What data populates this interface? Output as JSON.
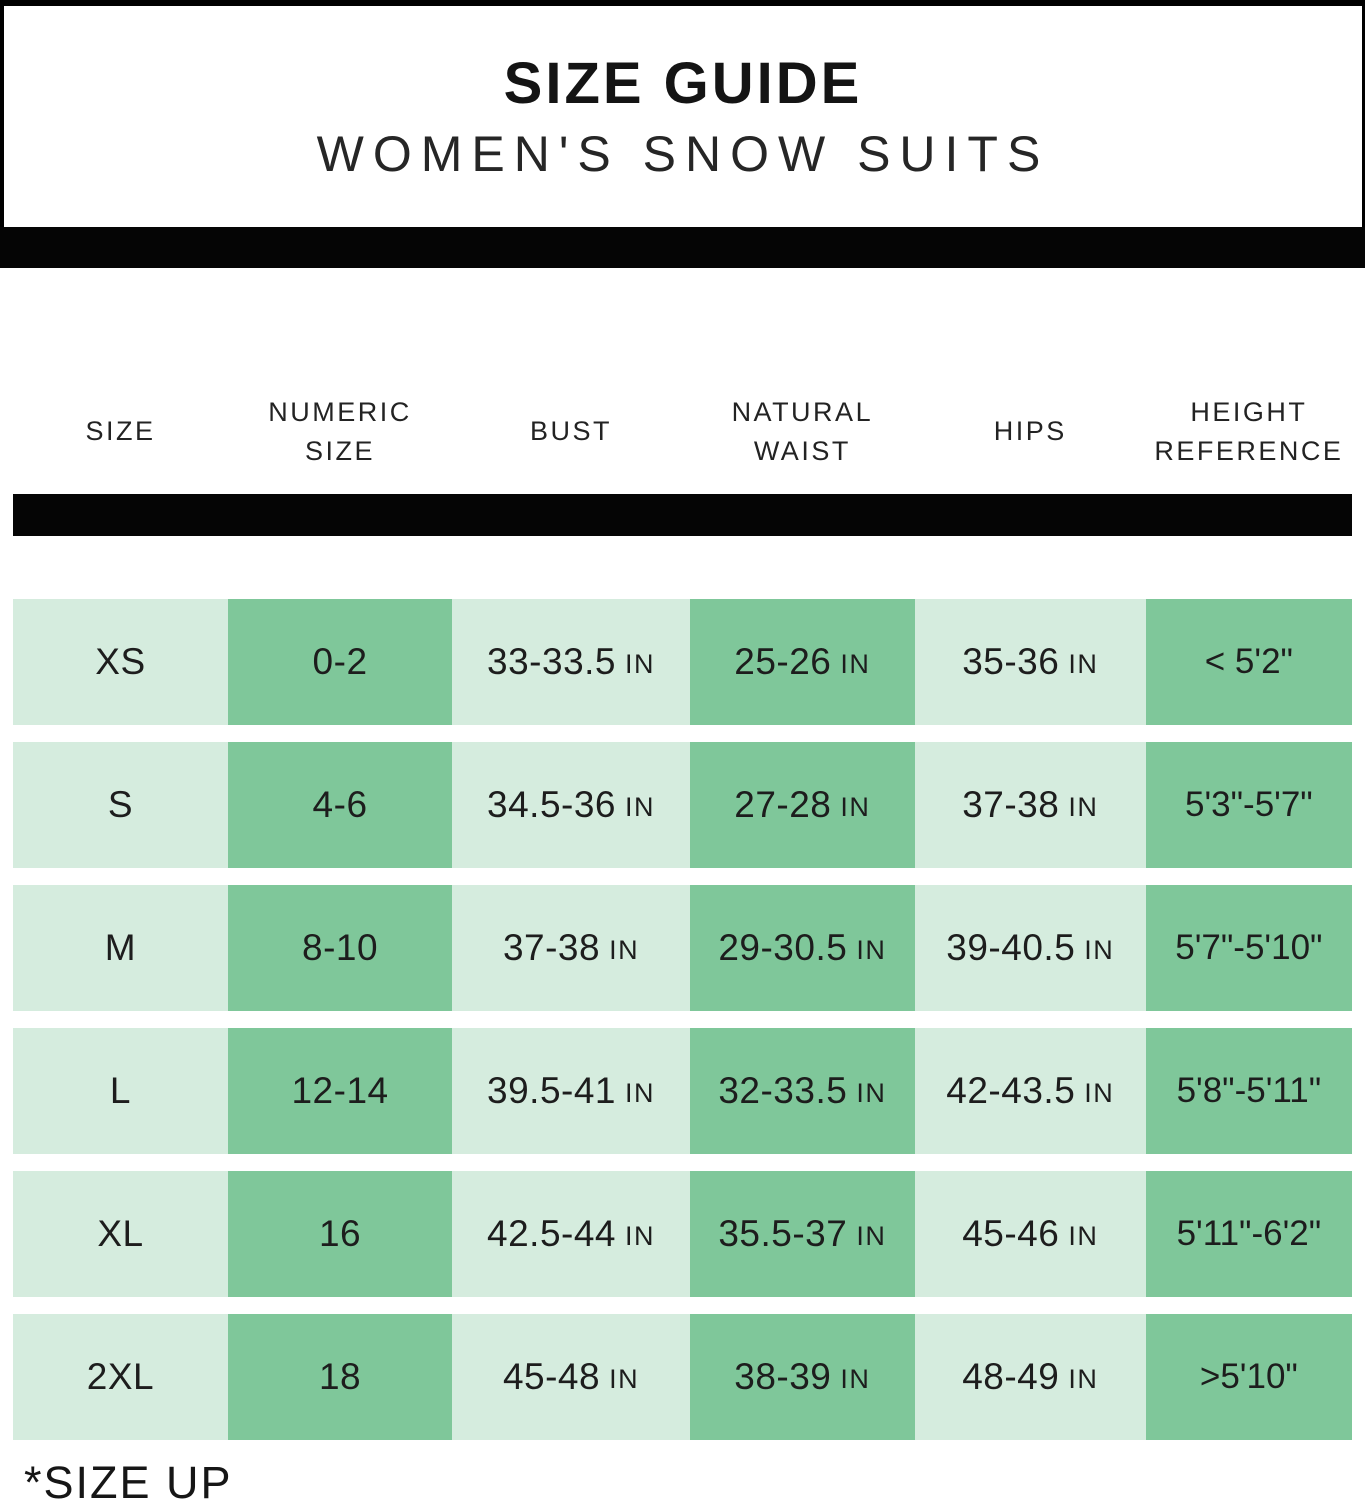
{
  "header": {
    "title": "SIZE GUIDE",
    "subtitle": "WOMEN'S SNOW SUITS"
  },
  "table": {
    "columns": [
      {
        "label": "SIZE"
      },
      {
        "label": "NUMERIC SIZE"
      },
      {
        "label": "BUST"
      },
      {
        "label": "NATURAL WAIST"
      },
      {
        "label": "HIPS"
      },
      {
        "label": "HEIGHT REFERENCE"
      }
    ],
    "rows": [
      {
        "cells": [
          {
            "main": "XS",
            "unit": ""
          },
          {
            "main": "0-2",
            "unit": ""
          },
          {
            "main": "33-33.5",
            "unit": "IN"
          },
          {
            "main": "25-26",
            "unit": "IN"
          },
          {
            "main": "35-36",
            "unit": "IN"
          },
          {
            "main": "< 5'2\"",
            "unit": ""
          }
        ]
      },
      {
        "cells": [
          {
            "main": "S",
            "unit": ""
          },
          {
            "main": "4-6",
            "unit": ""
          },
          {
            "main": "34.5-36",
            "unit": "IN"
          },
          {
            "main": "27-28",
            "unit": "IN"
          },
          {
            "main": "37-38",
            "unit": "IN"
          },
          {
            "main": "5'3\"-5'7\"",
            "unit": ""
          }
        ]
      },
      {
        "cells": [
          {
            "main": "M",
            "unit": ""
          },
          {
            "main": "8-10",
            "unit": ""
          },
          {
            "main": "37-38",
            "unit": "IN"
          },
          {
            "main": "29-30.5",
            "unit": "IN"
          },
          {
            "main": "39-40.5",
            "unit": "IN"
          },
          {
            "main": "5'7\"-5'10\"",
            "unit": ""
          }
        ]
      },
      {
        "cells": [
          {
            "main": "L",
            "unit": ""
          },
          {
            "main": "12-14",
            "unit": ""
          },
          {
            "main": "39.5-41",
            "unit": "IN"
          },
          {
            "main": "32-33.5",
            "unit": "IN"
          },
          {
            "main": "42-43.5",
            "unit": "IN"
          },
          {
            "main": "5'8\"-5'11\"",
            "unit": ""
          }
        ]
      },
      {
        "cells": [
          {
            "main": "XL",
            "unit": ""
          },
          {
            "main": "16",
            "unit": ""
          },
          {
            "main": "42.5-44",
            "unit": "IN"
          },
          {
            "main": "35.5-37",
            "unit": "IN"
          },
          {
            "main": "45-46",
            "unit": "IN"
          },
          {
            "main": "5'11\"-6'2\"",
            "unit": ""
          }
        ]
      },
      {
        "cells": [
          {
            "main": "2XL",
            "unit": ""
          },
          {
            "main": "18",
            "unit": ""
          },
          {
            "main": "45-48",
            "unit": "IN"
          },
          {
            "main": "38-39",
            "unit": "IN"
          },
          {
            "main": "48-49",
            "unit": "IN"
          },
          {
            "main": ">5'10\"",
            "unit": ""
          }
        ]
      }
    ]
  },
  "footnote": "*SIZE UP",
  "colors": {
    "light_green": "#d5ecde",
    "dark_green": "#7fc79a",
    "bar_black": "#050505"
  },
  "chart_data": {
    "type": "table",
    "title": "SIZE GUIDE",
    "subtitle": "WOMEN'S SNOW SUITS",
    "columns": [
      "SIZE",
      "NUMERIC SIZE",
      "BUST",
      "NATURAL WAIST",
      "HIPS",
      "HEIGHT REFERENCE"
    ],
    "rows": [
      [
        "XS",
        "0-2",
        "33-33.5 IN",
        "25-26 IN",
        "35-36 IN",
        "< 5'2\""
      ],
      [
        "S",
        "4-6",
        "34.5-36 IN",
        "27-28 IN",
        "37-38 IN",
        "5'3\"-5'7\""
      ],
      [
        "M",
        "8-10",
        "37-38 IN",
        "29-30.5 IN",
        "39-40.5 IN",
        "5'7\"-5'10\""
      ],
      [
        "L",
        "12-14",
        "39.5-41 IN",
        "32-33.5 IN",
        "42-43.5 IN",
        "5'8\"-5'11\""
      ],
      [
        "XL",
        "16",
        "42.5-44 IN",
        "35.5-37 IN",
        "45-46 IN",
        "5'11\"-6'2\""
      ],
      [
        "2XL",
        "18",
        "45-48 IN",
        "38-39 IN",
        "48-49 IN",
        ">5'10\""
      ]
    ],
    "footnote": "*SIZE UP",
    "layout": {
      "checkerboard_columns": {
        "light": [
          0,
          2,
          4
        ],
        "dark": [
          1,
          3,
          5
        ]
      },
      "grid": "off",
      "header_divider": "black bar"
    }
  }
}
